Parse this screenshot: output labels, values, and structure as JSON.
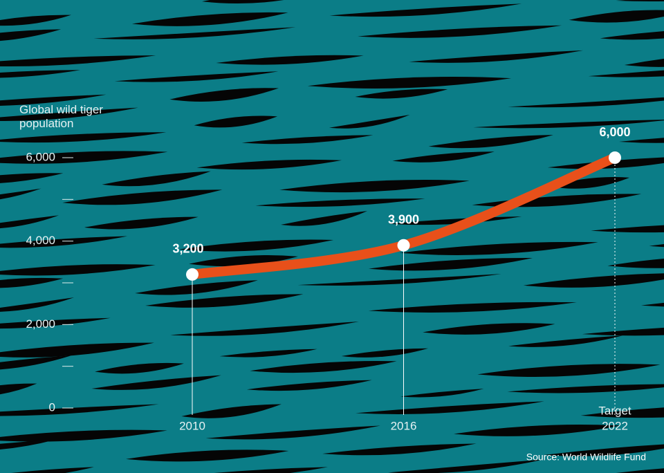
{
  "chart_data": {
    "type": "line",
    "y_axis_label": "Global wild tiger population",
    "x": [
      2010,
      2016,
      2022
    ],
    "values": [
      3200,
      3900,
      6000
    ],
    "value_labels": [
      "3,200",
      "3,900",
      "6,000"
    ],
    "color": "#e8501a",
    "xlim": [
      2010,
      2022
    ],
    "xticks": [
      2010,
      2016,
      2022
    ],
    "x_annotation": "Target",
    "ylim": [
      0,
      6000
    ],
    "yticks": [
      0,
      {
        "value": 2000,
        "label": "2,000"
      },
      {
        "value": 4000,
        "label": "4,000"
      },
      {
        "value": 6000,
        "label": "6,000"
      }
    ],
    "minor_yticks": [
      1000,
      3000,
      5000
    ],
    "source": "Source: World Wildlife Fund"
  }
}
